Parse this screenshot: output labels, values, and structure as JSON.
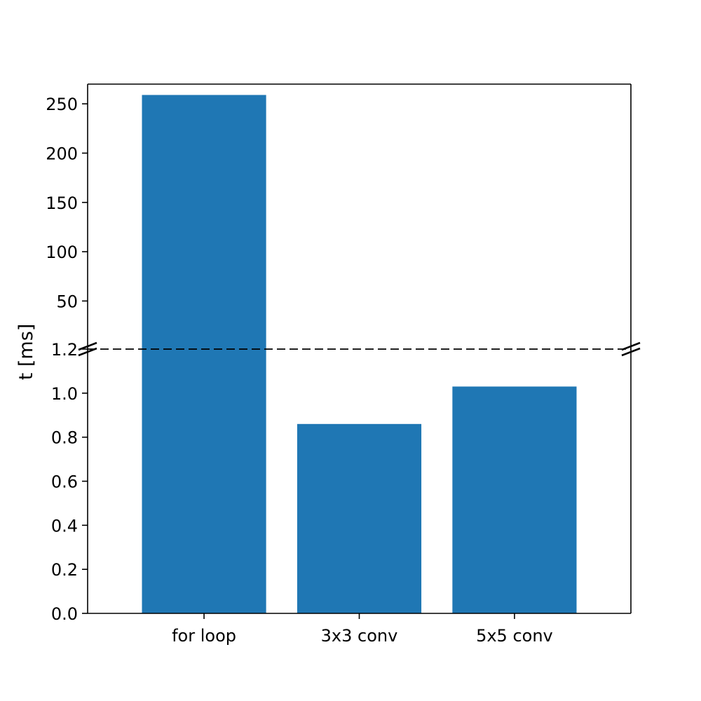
{
  "chart_data": {
    "type": "bar",
    "title": "",
    "xlabel": "",
    "ylabel": "t [ms]",
    "categories": [
      "for loop",
      "3x3 conv",
      "5x5 conv"
    ],
    "values": [
      259,
      0.86,
      1.03
    ],
    "broken_y_axis": true,
    "ylim_lower": [
      0,
      1.2
    ],
    "ylim_upper": [
      1.2,
      270
    ],
    "yticks_lower": [
      "0.0",
      "0.2",
      "0.4",
      "0.6",
      "0.8",
      "1.0",
      "1.2"
    ],
    "yticks_upper": [
      "50",
      "100",
      "150",
      "200",
      "250"
    ],
    "grid": false,
    "bar_color": "#1f77b4"
  }
}
